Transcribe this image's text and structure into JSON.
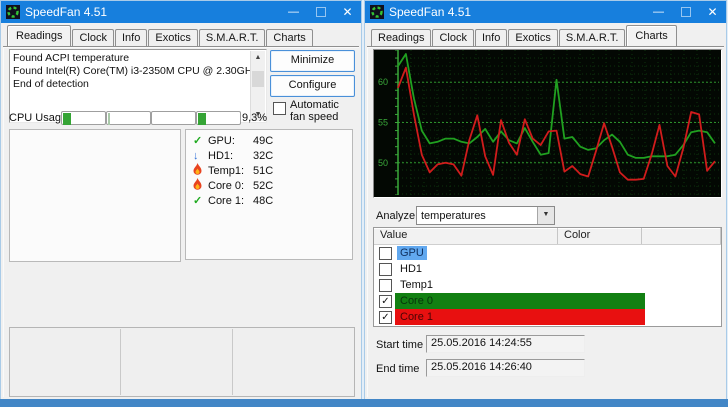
{
  "page": {
    "bottom_bar_color": "#4286c6",
    "titlebar_color": "#177fdd"
  },
  "left_window": {
    "title": "SpeedFan 4.51",
    "controls": {
      "minimize": "—",
      "close": "✕"
    },
    "tabs": [
      {
        "label": "Readings"
      },
      {
        "label": "Clock"
      },
      {
        "label": "Info"
      },
      {
        "label": "Exotics"
      },
      {
        "label": "S.M.A.R.T."
      },
      {
        "label": "Charts"
      }
    ],
    "active_tab": "Readings",
    "log_lines": [
      "Found ACPI temperature",
      "Found Intel(R) Core(TM) i3-2350M CPU @ 2.30GHz",
      "End of detection"
    ],
    "scrollbar": {
      "up": "▲",
      "down": "▼"
    },
    "minimize_button": "Minimize",
    "configure_button": "Configure",
    "auto_fan_label": "Automatic fan speed",
    "cpu_usage": {
      "label": "CPU Usage",
      "value": "9,3%",
      "bars": [
        {
          "style": "width:8px;background:#35a435"
        },
        {
          "style": "width:2px;background:#a9c9a9"
        },
        {
          "style": "width:0"
        },
        {
          "style": "width:8px;background:#35a435"
        }
      ]
    },
    "temperatures": [
      {
        "icon": "check-icon",
        "glyph": "✓",
        "name": "GPU:",
        "value": "49C"
      },
      {
        "icon": "down-arrow-icon",
        "glyph": "↓",
        "name": "HD1:",
        "value": "32C"
      },
      {
        "icon": "flame-icon",
        "glyph": "",
        "name": "Temp1:",
        "value": "51C"
      },
      {
        "icon": "flame-icon",
        "glyph": "",
        "name": "Core 0:",
        "value": "52C"
      },
      {
        "icon": "check-icon",
        "glyph": "✓",
        "name": "Core 1:",
        "value": "48C"
      }
    ]
  },
  "right_window": {
    "title": "SpeedFan 4.51",
    "controls": {
      "minimize": "—",
      "close": "✕"
    },
    "tabs": [
      {
        "label": "Readings"
      },
      {
        "label": "Clock"
      },
      {
        "label": "Info"
      },
      {
        "label": "Exotics"
      },
      {
        "label": "S.M.A.R.T."
      },
      {
        "label": "Charts"
      }
    ],
    "active_tab": "Charts",
    "analyze_label": "Analyze",
    "analyze_value": "temperatures",
    "dropdown_arrow": "▼",
    "table": {
      "headers": [
        "Value",
        "Color"
      ],
      "rows": [
        {
          "name": "GPU",
          "checked": false,
          "check_glyph": "",
          "selected": true
        },
        {
          "name": "HD1",
          "checked": false,
          "check_glyph": ""
        },
        {
          "name": "Temp1",
          "checked": false,
          "check_glyph": ""
        },
        {
          "name": "Core 0",
          "checked": true,
          "check_glyph": "✓",
          "bar_style": "background:#128012",
          "label_style": "color:#07350b"
        },
        {
          "name": "Core 1",
          "checked": true,
          "check_glyph": "✓",
          "bar_style": "background:#e81010",
          "label_style": "color:#4a0404"
        }
      ]
    },
    "start_time": {
      "label": "Start time",
      "value": "25.05.2016 14:24:55"
    },
    "end_time": {
      "label": "End time",
      "value": "25.05.2016 14:26:40"
    }
  },
  "chart_data": {
    "type": "line",
    "title": "",
    "xlabel": "",
    "ylabel": "",
    "ylim": [
      46,
      64
    ],
    "yticks": [
      50,
      55,
      60
    ],
    "grid": true,
    "legend_position": "none",
    "bg": "#030803",
    "axis_color": "#3aa83a",
    "grid_major_color": "#2c8f2c",
    "grid_minor_color": "#0e330e",
    "series": [
      {
        "name": "Core 0",
        "color": "#20a020",
        "values": [
          62.0,
          63.5,
          58.0,
          54.0,
          52.4,
          52.6,
          53.0,
          53.0,
          52.6,
          52.4,
          53.2,
          54.2,
          52.6,
          53.9,
          52.8,
          52.4,
          54.3,
          52.6,
          51.0,
          51.2,
          60.3,
          53.0,
          53.2,
          52.0,
          51.6,
          51.8,
          52.8,
          53.5,
          52.6,
          51.0,
          50.6,
          50.6,
          50.8,
          50.8,
          50.8,
          51.0,
          52.2,
          53.8,
          54.0,
          53.8,
          52.4
        ]
      },
      {
        "name": "Core 1",
        "color": "#d01c1c",
        "values": [
          59.3,
          61.8,
          56.0,
          51.0,
          48.8,
          49.8,
          50.0,
          49.8,
          48.4,
          52.8,
          55.9,
          50.8,
          48.5,
          55.3,
          52.5,
          51.0,
          55.4,
          53.0,
          52.2,
          53.9,
          54.0,
          48.9,
          49.6,
          48.6,
          48.3,
          51.5,
          54.9,
          52.0,
          48.8,
          47.9,
          47.9,
          48.0,
          51.0,
          54.7,
          49.6,
          48.3,
          51.8,
          56.3,
          56.0,
          49.0,
          50.2
        ]
      }
    ]
  }
}
